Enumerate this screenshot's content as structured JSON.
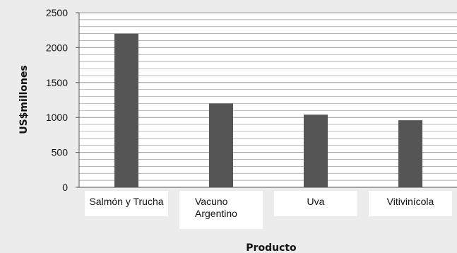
{
  "chart_data": {
    "type": "bar",
    "title": "",
    "xlabel": "Producto",
    "ylabel": "US$millones",
    "categories": [
      [
        "Salmón y Trucha"
      ],
      [
        "Vacuno",
        "Argentino"
      ],
      [
        "Uva"
      ],
      [
        "Vitivinícola"
      ]
    ],
    "values": [
      2200,
      1200,
      1040,
      960
    ],
    "ylim": [
      0,
      2500
    ],
    "yticks": [
      0,
      500,
      1000,
      1500,
      2000,
      2500
    ],
    "grid": true,
    "legend": "none",
    "colors": {
      "bar": "#555555",
      "grid": "#9a9a9a",
      "plot_background": "#ffffff",
      "page_background": "#ececec"
    }
  }
}
